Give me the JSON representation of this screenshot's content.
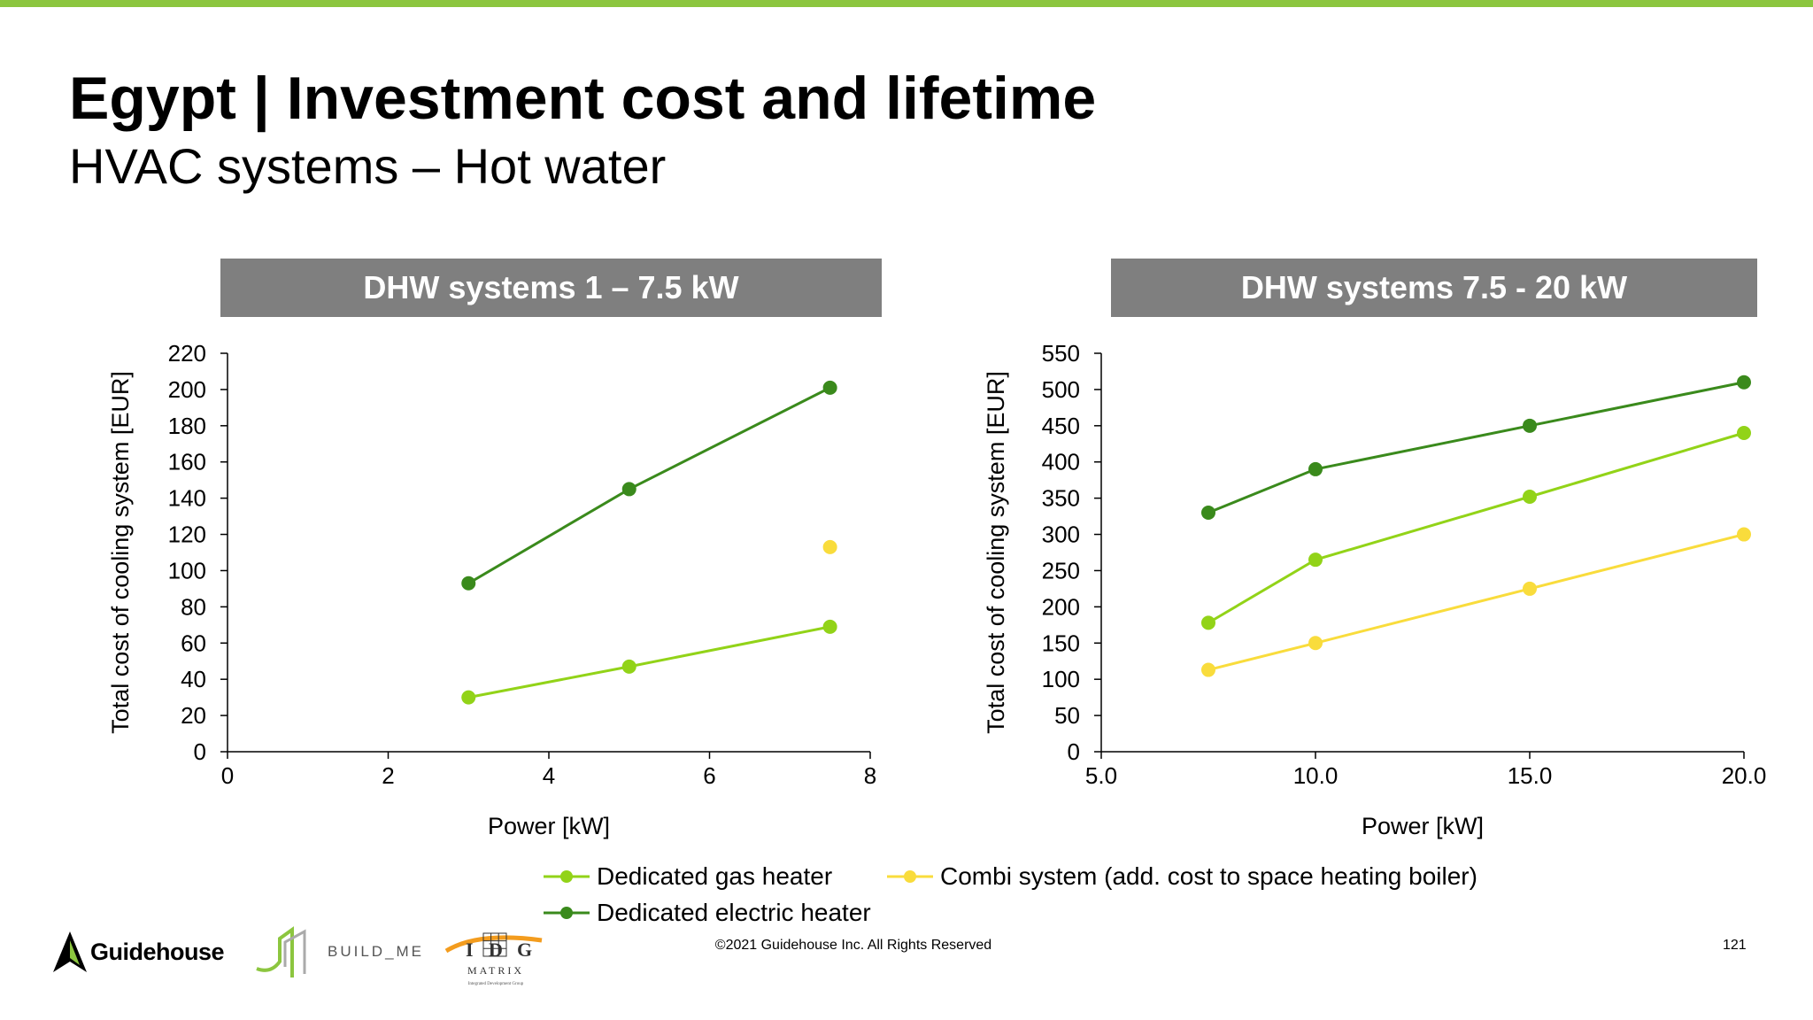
{
  "page": {
    "title": "Egypt | Investment cost and lifetime",
    "subtitle": "HVAC systems – Hot water",
    "copyright": "©2021 Guidehouse Inc. All Rights Reserved",
    "page_number": "121",
    "accent_color": "#8cc63f"
  },
  "logos": {
    "guidehouse": "Guidehouse",
    "buildme": "BUILD_ME",
    "idg_letters": [
      "I",
      "D",
      "G"
    ],
    "idg_name": "MATRIX",
    "idg_tagline": "Integrated Development Group"
  },
  "legend": [
    {
      "name": "Dedicated gas heater",
      "color": "#92d318"
    },
    {
      "name": "Combi system (add. cost to space heating boiler)",
      "color": "#f9dc3c"
    },
    {
      "name": "Dedicated electric heater",
      "color": "#3a8a1c"
    }
  ],
  "chart_data": [
    {
      "type": "line",
      "title": "DHW systems 1 – 7.5 kW",
      "xlabel": "Power [kW]",
      "ylabel": "Total cost of cooling system [EUR]",
      "xlim": [
        0,
        8
      ],
      "ylim": [
        0,
        220
      ],
      "xticks": [
        0,
        2,
        4,
        6,
        8
      ],
      "xtick_labels": [
        "0",
        "2",
        "4",
        "6",
        "8"
      ],
      "yticks": [
        0,
        20,
        40,
        60,
        80,
        100,
        120,
        140,
        160,
        180,
        200,
        220
      ],
      "ytick_labels": [
        "0",
        "20",
        "40",
        "60",
        "80",
        "100",
        "120",
        "140",
        "160",
        "180",
        "200",
        "220"
      ],
      "grid": false,
      "series": [
        {
          "name": "Dedicated gas heater",
          "color": "#92d318",
          "x": [
            3,
            5,
            7.5
          ],
          "y": [
            30,
            47,
            69
          ]
        },
        {
          "name": "Dedicated electric heater",
          "color": "#3a8a1c",
          "x": [
            3,
            5,
            7.5
          ],
          "y": [
            93,
            145,
            201
          ]
        },
        {
          "name": "Combi system (add. cost to space heating boiler)",
          "color": "#f9dc3c",
          "x": [
            7.5
          ],
          "y": [
            113
          ]
        }
      ]
    },
    {
      "type": "line",
      "title": "DHW systems 7.5 - 20 kW",
      "xlabel": "Power [kW]",
      "ylabel": "Total cost of cooling system [EUR]",
      "xlim": [
        5,
        20
      ],
      "ylim": [
        0,
        550
      ],
      "xticks": [
        5,
        10,
        15,
        20
      ],
      "xtick_labels": [
        "5.0",
        "10.0",
        "15.0",
        "20.0"
      ],
      "yticks": [
        0,
        50,
        100,
        150,
        200,
        250,
        300,
        350,
        400,
        450,
        500,
        550
      ],
      "ytick_labels": [
        "0",
        "50",
        "100",
        "150",
        "200",
        "250",
        "300",
        "350",
        "400",
        "450",
        "500",
        "550"
      ],
      "grid": false,
      "series": [
        {
          "name": "Dedicated gas heater",
          "color": "#92d318",
          "x": [
            7.5,
            10,
            15,
            20
          ],
          "y": [
            178,
            265,
            352,
            440
          ]
        },
        {
          "name": "Dedicated electric heater",
          "color": "#3a8a1c",
          "x": [
            7.5,
            10,
            15,
            20
          ],
          "y": [
            330,
            390,
            450,
            510
          ]
        },
        {
          "name": "Combi system (add. cost to space heating boiler)",
          "color": "#f9dc3c",
          "x": [
            7.5,
            10,
            15,
            20
          ],
          "y": [
            113,
            150,
            225,
            300
          ]
        }
      ]
    }
  ]
}
